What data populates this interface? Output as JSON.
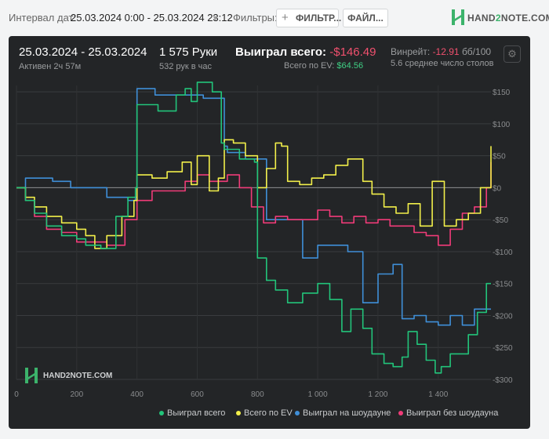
{
  "toolbar": {
    "date_label": "Интервал дат:",
    "date_value": "25.03.2024 0:00 - 25.03.2024 23:12",
    "filters_label": "Фильтры:",
    "filter_button": "ФИЛЬТР...",
    "file_button": "ФАЙЛ...",
    "logo_text_a": "HAND",
    "logo_text_b": "2",
    "logo_text_c": "NOTE.COM"
  },
  "summary": {
    "date_range": "25.03.2024 - 25.03.2024",
    "active": "Активен 2ч 57м",
    "hands": "1 575 Руки",
    "hands_per_hour": "532 рук в час",
    "won_label": "Выиграл всего:",
    "won_value": "-$146.49",
    "ev_label": "Всего по EV:",
    "ev_value": "$64.56",
    "winrate_label": "Винрейт:",
    "winrate_value": "-12.91",
    "winrate_extra": "бб/100",
    "avg_tables": "5.6 среднее число столов"
  },
  "watermark": "HAND2NOTE.COM",
  "colors": {
    "won": "#22c47a",
    "ev": "#f2ef4a",
    "showdown": "#3f8fd8",
    "non_showdown": "#f03b78"
  },
  "chart_data": {
    "type": "line",
    "xlim": [
      0,
      1575
    ],
    "ylim": [
      -300,
      160
    ],
    "x_ticks": [
      0,
      200,
      400,
      600,
      800,
      1000,
      1200,
      1400
    ],
    "x_tick_labels": [
      "0",
      "200",
      "400",
      "600",
      "800",
      "1 000",
      "1 200",
      "1 400"
    ],
    "y_ticks": [
      150,
      100,
      50,
      0,
      -50,
      -100,
      -150,
      -200,
      -250,
      -300
    ],
    "y_tick_labels": [
      "$150",
      "$100",
      "$50",
      "$0",
      "-$50",
      "-$100",
      "-$150",
      "-$200",
      "-$250",
      "-$300"
    ],
    "grid": true,
    "legend_position": "bottom",
    "series": [
      {
        "name": "Выиграл всего",
        "color_key": "won",
        "x": [
          0,
          30,
          60,
          100,
          150,
          200,
          230,
          280,
          330,
          370,
          395,
          400,
          470,
          530,
          560,
          580,
          600,
          650,
          680,
          690,
          700,
          740,
          790,
          800,
          830,
          860,
          900,
          950,
          1000,
          1040,
          1080,
          1110,
          1150,
          1180,
          1220,
          1250,
          1280,
          1300,
          1330,
          1360,
          1390,
          1410,
          1440,
          1470,
          1500,
          1530,
          1560,
          1575
        ],
        "y": [
          0,
          -20,
          -40,
          -60,
          -75,
          -80,
          -90,
          -95,
          -45,
          -15,
          0,
          130,
          120,
          145,
          155,
          135,
          165,
          150,
          70,
          60,
          60,
          45,
          40,
          -110,
          -145,
          -160,
          -180,
          -165,
          -150,
          -175,
          -225,
          -190,
          -220,
          -260,
          -275,
          -280,
          -265,
          -225,
          -245,
          -270,
          -290,
          -280,
          -260,
          -260,
          -230,
          -195,
          -150,
          -150
        ]
      },
      {
        "name": "Всего по EV",
        "color_key": "ev",
        "x": [
          0,
          30,
          60,
          100,
          150,
          200,
          230,
          260,
          300,
          350,
          390,
          400,
          450,
          500,
          550,
          580,
          600,
          640,
          670,
          690,
          720,
          760,
          800,
          830,
          860,
          880,
          900,
          940,
          980,
          1020,
          1060,
          1100,
          1150,
          1180,
          1220,
          1260,
          1300,
          1340,
          1380,
          1420,
          1460,
          1500,
          1540,
          1575
        ],
        "y": [
          0,
          -15,
          -30,
          -45,
          -55,
          -65,
          -75,
          -95,
          -75,
          -45,
          -20,
          20,
          15,
          25,
          40,
          5,
          50,
          -5,
          15,
          75,
          70,
          50,
          0,
          30,
          70,
          65,
          10,
          5,
          15,
          20,
          35,
          45,
          10,
          -10,
          -30,
          -40,
          -25,
          -60,
          10,
          -60,
          -50,
          -40,
          0,
          65
        ]
      },
      {
        "name": "Выиграл на шоудауне",
        "color_key": "showdown",
        "x": [
          0,
          30,
          60,
          120,
          180,
          200,
          300,
          370,
          395,
          400,
          460,
          560,
          620,
          690,
          700,
          760,
          800,
          830,
          900,
          950,
          980,
          1000,
          1050,
          1100,
          1150,
          1200,
          1250,
          1280,
          1320,
          1360,
          1400,
          1440,
          1480,
          1520,
          1575
        ],
        "y": [
          0,
          15,
          15,
          10,
          0,
          0,
          -15,
          -20,
          -15,
          155,
          145,
          145,
          140,
          65,
          55,
          45,
          45,
          -50,
          -50,
          -110,
          -110,
          -90,
          -90,
          -100,
          -180,
          -135,
          -120,
          -205,
          -200,
          -210,
          -215,
          -200,
          -215,
          -190,
          -190
        ]
      },
      {
        "name": "Выиграл без шоудауна",
        "color_key": "non_showdown",
        "x": [
          0,
          30,
          60,
          100,
          150,
          200,
          260,
          300,
          360,
          400,
          450,
          500,
          560,
          600,
          640,
          680,
          700,
          740,
          780,
          820,
          860,
          900,
          960,
          1000,
          1040,
          1080,
          1120,
          1160,
          1200,
          1240,
          1280,
          1320,
          1360,
          1400,
          1440,
          1480,
          1520,
          1560,
          1575
        ],
        "y": [
          0,
          -20,
          -45,
          -65,
          -70,
          -85,
          -85,
          -90,
          -50,
          -20,
          -5,
          -5,
          10,
          20,
          10,
          10,
          20,
          0,
          -30,
          -55,
          -45,
          -50,
          -50,
          -35,
          -45,
          -55,
          -45,
          -55,
          -50,
          -60,
          -60,
          -70,
          -75,
          -90,
          -65,
          -40,
          -30,
          0,
          40
        ]
      }
    ]
  }
}
